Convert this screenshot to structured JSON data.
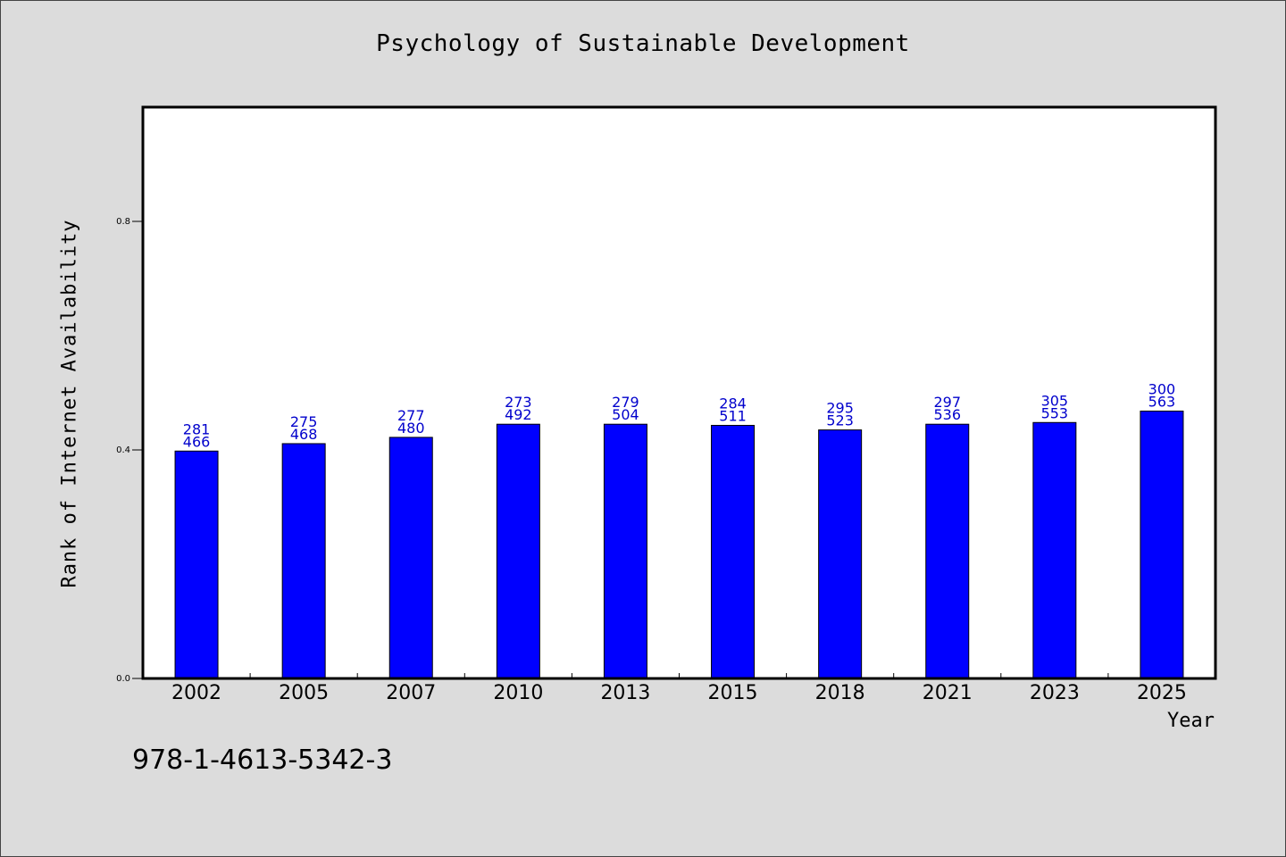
{
  "chart_data": {
    "type": "bar",
    "title": "Psychology of Sustainable Development",
    "xlabel": "Year",
    "ylabel": "Rank of Internet Availability",
    "categories": [
      "2002",
      "2005",
      "2007",
      "2010",
      "2013",
      "2015",
      "2018",
      "2021",
      "2023",
      "2025"
    ],
    "values": [
      0.398,
      0.411,
      0.422,
      0.445,
      0.445,
      0.443,
      0.435,
      0.445,
      0.448,
      0.468
    ],
    "labels_top": [
      "281",
      "275",
      "277",
      "273",
      "279",
      "284",
      "295",
      "297",
      "305",
      "300"
    ],
    "labels_bottom": [
      "466",
      "468",
      "480",
      "492",
      "504",
      "511",
      "523",
      "536",
      "553",
      "563"
    ],
    "yticks": [
      "0.0",
      "0.4",
      "0.8"
    ],
    "ytick_values": [
      0.0,
      0.4,
      0.8
    ],
    "ylim": [
      0,
      1.0
    ],
    "grid": false,
    "bar_color": "#0000ff",
    "label_color": "#0000cc"
  },
  "footer": {
    "isbn": "978-1-4613-5342-3"
  }
}
